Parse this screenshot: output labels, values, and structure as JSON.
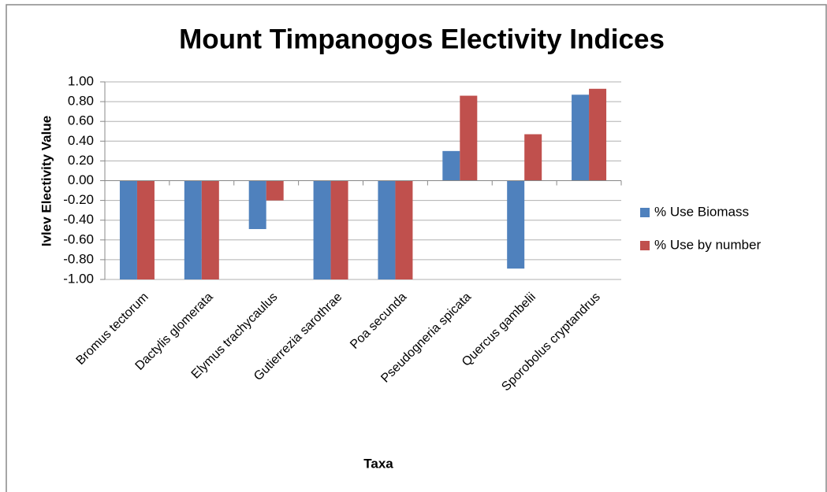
{
  "chart_data": {
    "type": "bar",
    "title": "Mount Timpanogos Electivity Indices",
    "y_label": "Ivlev Electivity Value",
    "x_label": "Taxa",
    "categories": [
      "Bromus tectorum",
      "Dactylis glomerata",
      "Elymus trachycaulus",
      "Gutierrezia sarothrae",
      "Poa secunda",
      "Pseudogneria spicata",
      "Quercus gambelii",
      "Sporobolus cryptandrus"
    ],
    "series": [
      {
        "name": "% Use Biomass",
        "color": "#4f81bd",
        "values": [
          -1,
          -1,
          -0.49,
          -1,
          -1,
          0.3,
          -0.89,
          0.87
        ]
      },
      {
        "name": "% Use by number",
        "color": "#c0504d",
        "values": [
          -1,
          -1,
          -0.2,
          -1,
          -1,
          0.86,
          0.47,
          0.93
        ]
      }
    ],
    "ylim": [
      -1,
      1
    ],
    "yticks": [
      {
        "value": 1,
        "label": "1.00"
      },
      {
        "value": 0.8,
        "label": "0.80"
      },
      {
        "value": 0.6,
        "label": "0.60"
      },
      {
        "value": 0.4,
        "label": "0.40"
      },
      {
        "value": 0.2,
        "label": "0.20"
      },
      {
        "value": 0,
        "label": "0.00"
      },
      {
        "value": -0.2,
        "label": "-0.20"
      },
      {
        "value": -0.4,
        "label": "-0.40"
      },
      {
        "value": -0.6,
        "label": "-0.60"
      },
      {
        "value": -0.8,
        "label": "-0.80"
      },
      {
        "value": -1,
        "label": "-1.00"
      }
    ],
    "grid": true,
    "legend": "right"
  }
}
